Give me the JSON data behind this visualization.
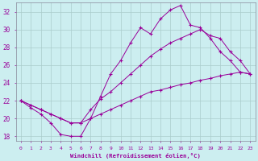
{
  "xlabel": "Windchill (Refroidissement éolien,°C)",
  "bg_color": "#cceef0",
  "line_color": "#990099",
  "grid_color": "#aacccc",
  "xlim": [
    -0.5,
    23.5
  ],
  "ylim": [
    17.5,
    33.0
  ],
  "xticks": [
    0,
    1,
    2,
    3,
    4,
    5,
    6,
    7,
    8,
    9,
    10,
    11,
    12,
    13,
    14,
    15,
    16,
    17,
    18,
    19,
    20,
    21,
    22,
    23
  ],
  "yticks": [
    18,
    20,
    22,
    24,
    26,
    28,
    30,
    32
  ],
  "series1_x": [
    0,
    1,
    2,
    3,
    4,
    5,
    6,
    7,
    8,
    9,
    10,
    11,
    12,
    13,
    14,
    15,
    16,
    17,
    18,
    19,
    20,
    21,
    22,
    23
  ],
  "series1_y": [
    22.0,
    21.2,
    20.5,
    19.5,
    18.2,
    18.0,
    18.0,
    20.0,
    22.5,
    25.0,
    26.5,
    28.5,
    30.2,
    29.5,
    31.2,
    32.2,
    32.7,
    30.5,
    30.2,
    29.0,
    27.5,
    26.5,
    25.2,
    25.0
  ],
  "series2_x": [
    0,
    1,
    2,
    3,
    4,
    5,
    6,
    7,
    8,
    9,
    10,
    11,
    12,
    13,
    14,
    15,
    16,
    17,
    18,
    19,
    20,
    21,
    22,
    23
  ],
  "series2_y": [
    22.0,
    21.5,
    21.0,
    20.5,
    20.0,
    19.5,
    19.5,
    21.0,
    22.2,
    23.0,
    24.0,
    25.0,
    26.0,
    27.0,
    27.8,
    28.5,
    29.0,
    29.5,
    30.0,
    29.3,
    29.0,
    27.5,
    26.5,
    25.0
  ],
  "series3_x": [
    0,
    1,
    2,
    3,
    4,
    5,
    6,
    7,
    8,
    9,
    10,
    11,
    12,
    13,
    14,
    15,
    16,
    17,
    18,
    19,
    20,
    21,
    22,
    23
  ],
  "series3_y": [
    22.0,
    21.5,
    21.0,
    20.5,
    20.0,
    19.5,
    19.5,
    20.0,
    20.5,
    21.0,
    21.5,
    22.0,
    22.5,
    23.0,
    23.2,
    23.5,
    23.8,
    24.0,
    24.3,
    24.5,
    24.8,
    25.0,
    25.2,
    25.0
  ]
}
